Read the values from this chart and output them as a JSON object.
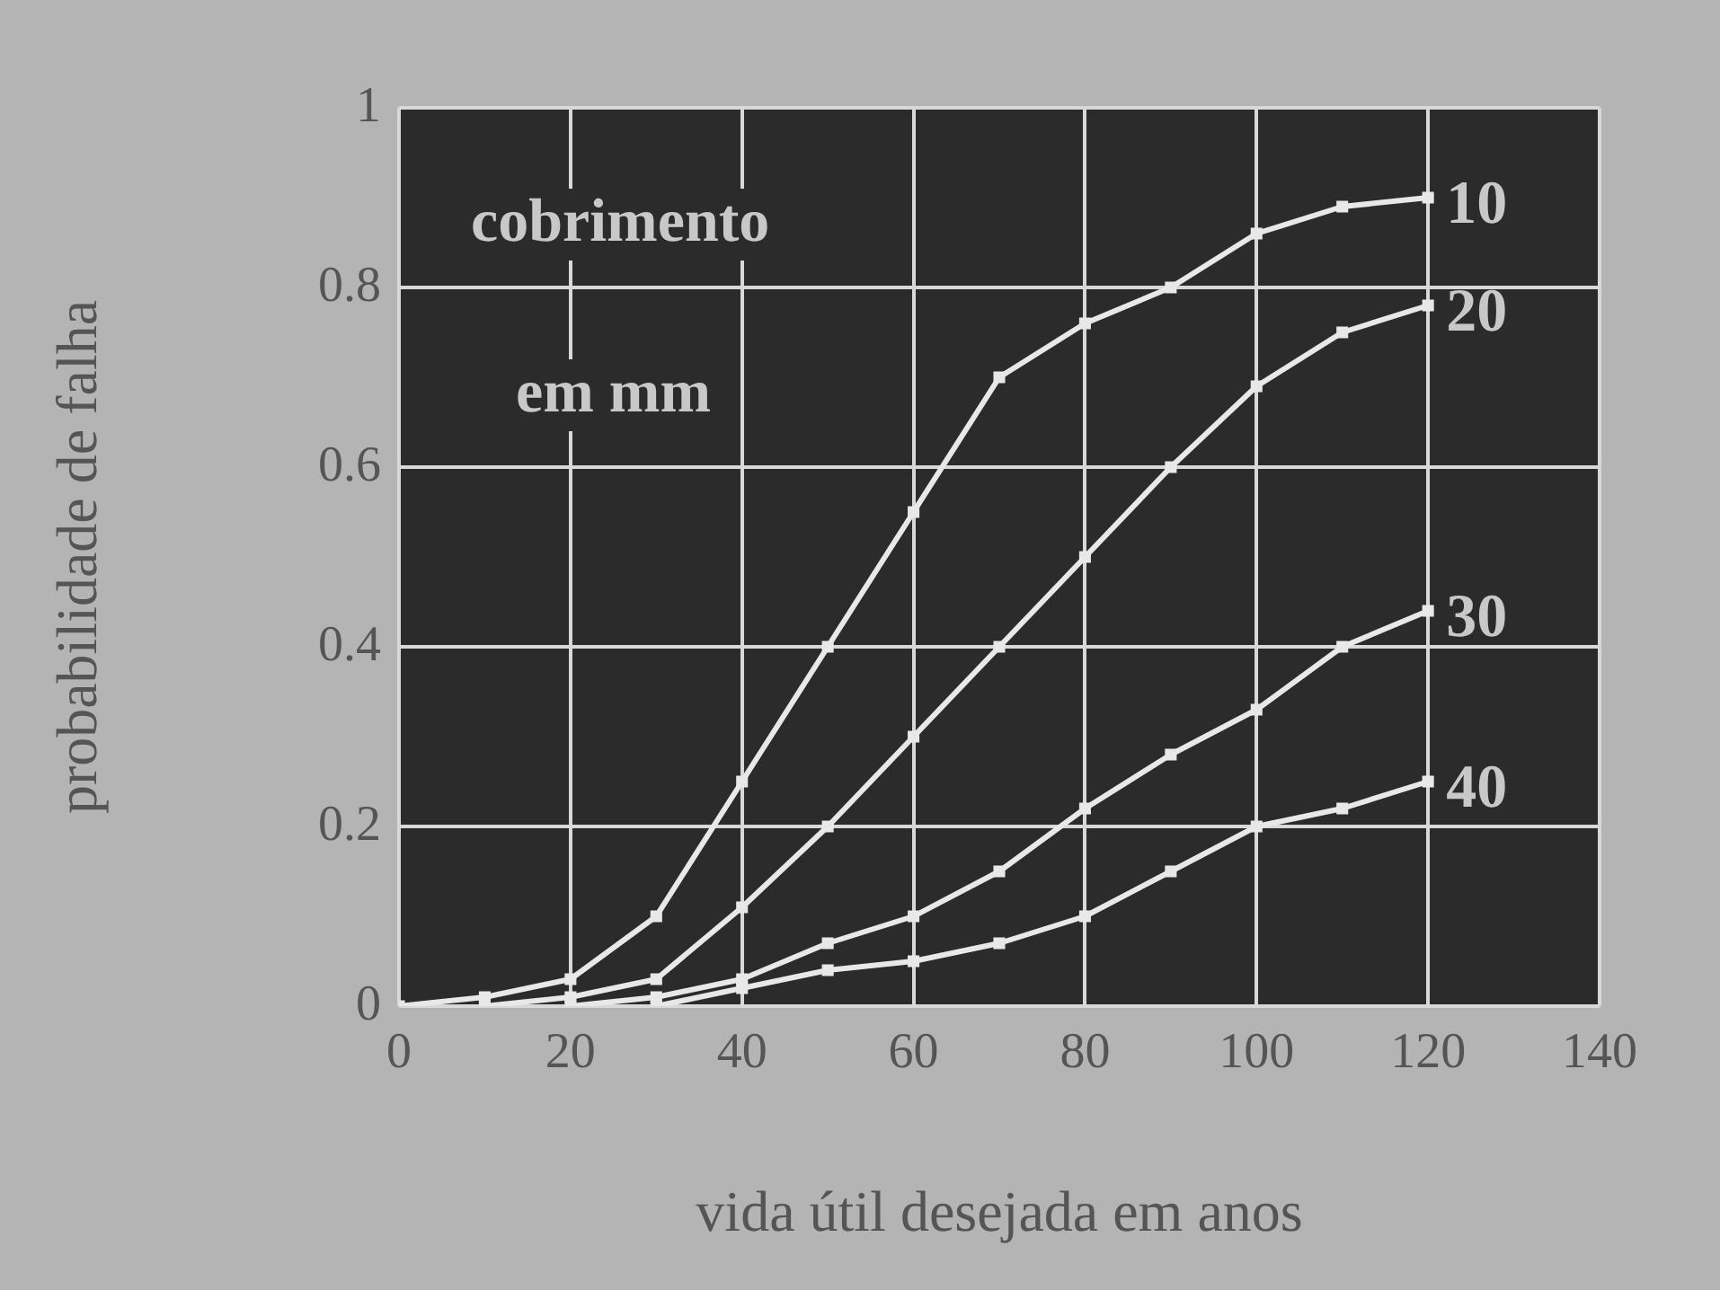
{
  "chart_data": {
    "type": "line",
    "xlabel": "vida útil desejada em anos",
    "ylabel": "probabilidade de falha",
    "annotations": [
      "cobrimento",
      "em mm"
    ],
    "xlim": [
      0,
      140
    ],
    "xticks": [
      0,
      20,
      40,
      60,
      80,
      100,
      120,
      140
    ],
    "ylim": [
      0,
      1
    ],
    "yticks": [
      0,
      0.2,
      0.4,
      0.6,
      0.8,
      1
    ],
    "grid": true,
    "legend": false,
    "marker": "square",
    "line_style": "solid",
    "series": [
      {
        "name": "10",
        "color": "#e8e8e8",
        "x": [
          0,
          10,
          20,
          30,
          40,
          50,
          60,
          70,
          80,
          90,
          100,
          110,
          120
        ],
        "values": [
          0,
          0.01,
          0.03,
          0.1,
          0.25,
          0.4,
          0.55,
          0.7,
          0.76,
          0.8,
          0.86,
          0.89,
          0.9
        ]
      },
      {
        "name": "20",
        "color": "#e8e8e8",
        "x": [
          10,
          20,
          30,
          40,
          50,
          60,
          70,
          80,
          90,
          100,
          110,
          120
        ],
        "values": [
          0,
          0.01,
          0.03,
          0.11,
          0.2,
          0.3,
          0.4,
          0.5,
          0.6,
          0.69,
          0.75,
          0.78
        ]
      },
      {
        "name": "30",
        "color": "#e8e8e8",
        "x": [
          20,
          30,
          40,
          50,
          60,
          70,
          80,
          90,
          100,
          110,
          120
        ],
        "values": [
          0,
          0.01,
          0.03,
          0.07,
          0.1,
          0.15,
          0.22,
          0.28,
          0.33,
          0.4,
          0.44
        ]
      },
      {
        "name": "40",
        "color": "#e8e8e8",
        "x": [
          30,
          40,
          50,
          60,
          70,
          80,
          90,
          100,
          110,
          120
        ],
        "values": [
          0,
          0.02,
          0.04,
          0.05,
          0.07,
          0.1,
          0.15,
          0.2,
          0.22,
          0.25
        ]
      }
    ]
  }
}
